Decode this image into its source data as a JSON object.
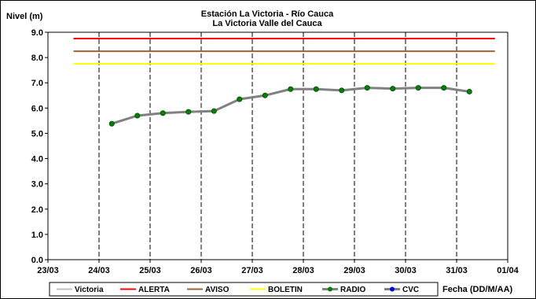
{
  "chart_data": {
    "type": "line",
    "title": "Estación La Victoria - Río Cauca",
    "subtitle": "La Victoria Valle del Cauca",
    "ylabel": "Nivel (m)",
    "xlabel": "Fecha (DD/M/AA)",
    "ylim": [
      0,
      9
    ],
    "yticks": [
      "0.0",
      "1.0",
      "2.0",
      "3.0",
      "4.0",
      "5.0",
      "6.0",
      "7.0",
      "8.0",
      "9.0"
    ],
    "xlim": [
      0,
      9
    ],
    "xticks": [
      "23/03",
      "24/03",
      "25/03",
      "26/03",
      "27/03",
      "28/03",
      "29/03",
      "30/03",
      "31/03",
      "01/04"
    ],
    "grid": "vertical",
    "legend_position": "bottom",
    "series": [
      {
        "name": "Victoria",
        "style": "line",
        "color": "#c0c0c0",
        "x": [],
        "y": []
      },
      {
        "name": "ALERTA",
        "style": "hline",
        "color": "#ff0000",
        "x": [
          0.5,
          8.75
        ],
        "y": [
          8.75,
          8.75
        ]
      },
      {
        "name": "AVISO",
        "style": "hline",
        "color": "#996633",
        "x": [
          0.5,
          8.75
        ],
        "y": [
          8.25,
          8.25
        ]
      },
      {
        "name": "BOLETIN",
        "style": "hline",
        "color": "#ffff00",
        "x": [
          0.5,
          8.75
        ],
        "y": [
          7.75,
          7.75
        ]
      },
      {
        "name": "RADIO",
        "style": "line-markers",
        "color": "#808080",
        "marker_color": "#008000",
        "x": [
          1.25,
          1.75,
          2.25,
          2.75,
          3.25,
          3.75,
          4.25,
          4.75,
          5.25,
          5.75,
          6.25,
          6.75,
          7.25,
          7.75,
          8.25
        ],
        "y": [
          5.38,
          5.7,
          5.8,
          5.85,
          5.88,
          6.35,
          6.5,
          6.75,
          6.75,
          6.7,
          6.8,
          6.77,
          6.8,
          6.8,
          6.65
        ]
      },
      {
        "name": "CVC",
        "style": "line-markers",
        "color": "#808080",
        "marker_color": "#0000ff",
        "x": [],
        "y": []
      }
    ]
  }
}
